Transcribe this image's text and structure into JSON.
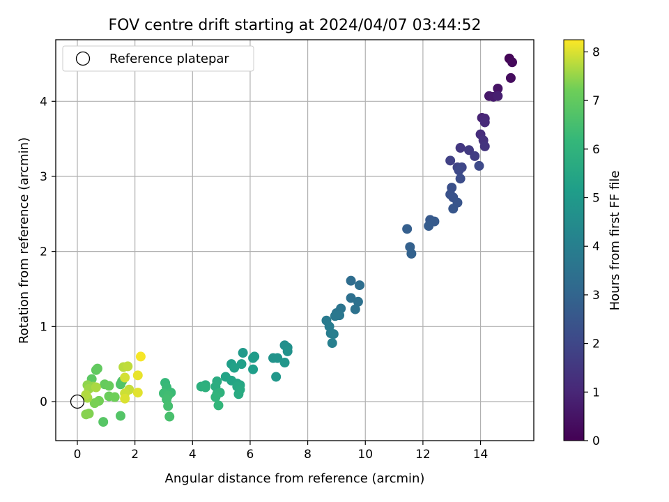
{
  "chart_data": {
    "type": "scatter",
    "title": "FOV centre drift starting at 2024/04/07 03:44:52",
    "xlabel": "Angular distance from reference (arcmin)",
    "ylabel": "Rotation from reference (arcmin)",
    "xlim": [
      -0.75,
      15.85
    ],
    "ylim": [
      -0.52,
      4.82
    ],
    "x_ticks": [
      0,
      2,
      4,
      6,
      8,
      10,
      12,
      14
    ],
    "y_ticks": [
      0,
      1,
      2,
      3,
      4
    ],
    "grid": true,
    "legend": {
      "position": "top-left",
      "entries": [
        "Reference platepar"
      ]
    },
    "reference_point": {
      "x": 0,
      "y": 0
    },
    "colorbar": {
      "label": "Hours from first FF file",
      "colormap": "viridis",
      "range": [
        0,
        8.25
      ],
      "ticks": [
        0,
        1,
        2,
        3,
        4,
        5,
        6,
        7,
        8
      ]
    },
    "points": [
      {
        "x": 15.0,
        "y": 4.57,
        "c": 0.1
      },
      {
        "x": 15.1,
        "y": 4.52,
        "c": 0.2
      },
      {
        "x": 15.05,
        "y": 4.31,
        "c": 0.3
      },
      {
        "x": 14.6,
        "y": 4.17,
        "c": 0.5
      },
      {
        "x": 14.3,
        "y": 4.07,
        "c": 0.6
      },
      {
        "x": 14.45,
        "y": 4.06,
        "c": 0.7
      },
      {
        "x": 14.6,
        "y": 4.07,
        "c": 0.8
      },
      {
        "x": 14.05,
        "y": 3.78,
        "c": 0.9
      },
      {
        "x": 14.15,
        "y": 3.77,
        "c": 1.0
      },
      {
        "x": 14.15,
        "y": 3.72,
        "c": 1.1
      },
      {
        "x": 14.0,
        "y": 3.56,
        "c": 1.2
      },
      {
        "x": 14.1,
        "y": 3.48,
        "c": 1.3
      },
      {
        "x": 14.15,
        "y": 3.4,
        "c": 1.4
      },
      {
        "x": 13.3,
        "y": 3.38,
        "c": 1.5
      },
      {
        "x": 13.6,
        "y": 3.35,
        "c": 1.6
      },
      {
        "x": 13.8,
        "y": 3.27,
        "c": 1.7
      },
      {
        "x": 12.95,
        "y": 3.21,
        "c": 1.8
      },
      {
        "x": 13.2,
        "y": 3.12,
        "c": 1.9
      },
      {
        "x": 13.35,
        "y": 3.12,
        "c": 2.0
      },
      {
        "x": 13.25,
        "y": 3.08,
        "c": 2.05
      },
      {
        "x": 13.95,
        "y": 3.14,
        "c": 2.1
      },
      {
        "x": 13.3,
        "y": 2.97,
        "c": 2.2
      },
      {
        "x": 13.0,
        "y": 2.85,
        "c": 2.3
      },
      {
        "x": 12.95,
        "y": 2.76,
        "c": 2.35
      },
      {
        "x": 13.05,
        "y": 2.72,
        "c": 2.4
      },
      {
        "x": 13.2,
        "y": 2.65,
        "c": 2.45
      },
      {
        "x": 13.05,
        "y": 2.57,
        "c": 2.5
      },
      {
        "x": 12.25,
        "y": 2.42,
        "c": 2.6
      },
      {
        "x": 12.4,
        "y": 2.4,
        "c": 2.65
      },
      {
        "x": 12.2,
        "y": 2.34,
        "c": 2.7
      },
      {
        "x": 11.45,
        "y": 2.3,
        "c": 2.8
      },
      {
        "x": 11.55,
        "y": 2.06,
        "c": 2.85
      },
      {
        "x": 11.6,
        "y": 1.97,
        "c": 2.9
      },
      {
        "x": 9.5,
        "y": 1.61,
        "c": 3.3
      },
      {
        "x": 9.8,
        "y": 1.55,
        "c": 3.35
      },
      {
        "x": 9.5,
        "y": 1.38,
        "c": 3.4
      },
      {
        "x": 9.75,
        "y": 1.33,
        "c": 3.45
      },
      {
        "x": 9.65,
        "y": 1.23,
        "c": 3.5
      },
      {
        "x": 9.15,
        "y": 1.24,
        "c": 3.55
      },
      {
        "x": 9.0,
        "y": 1.18,
        "c": 3.6
      },
      {
        "x": 9.05,
        "y": 1.16,
        "c": 3.65
      },
      {
        "x": 9.1,
        "y": 1.15,
        "c": 3.7
      },
      {
        "x": 8.95,
        "y": 1.14,
        "c": 3.72
      },
      {
        "x": 8.65,
        "y": 1.08,
        "c": 3.8
      },
      {
        "x": 8.75,
        "y": 1.0,
        "c": 3.85
      },
      {
        "x": 8.8,
        "y": 0.91,
        "c": 3.9
      },
      {
        "x": 8.9,
        "y": 0.9,
        "c": 3.95
      },
      {
        "x": 8.85,
        "y": 0.78,
        "c": 4.0
      },
      {
        "x": 7.2,
        "y": 0.75,
        "c": 4.6
      },
      {
        "x": 7.3,
        "y": 0.72,
        "c": 4.65
      },
      {
        "x": 7.3,
        "y": 0.67,
        "c": 4.7
      },
      {
        "x": 6.8,
        "y": 0.58,
        "c": 4.75
      },
      {
        "x": 6.95,
        "y": 0.58,
        "c": 4.8
      },
      {
        "x": 7.2,
        "y": 0.52,
        "c": 4.85
      },
      {
        "x": 6.9,
        "y": 0.33,
        "c": 4.9
      },
      {
        "x": 5.75,
        "y": 0.65,
        "c": 5.0
      },
      {
        "x": 6.15,
        "y": 0.6,
        "c": 5.05
      },
      {
        "x": 6.1,
        "y": 0.58,
        "c": 5.1
      },
      {
        "x": 6.1,
        "y": 0.43,
        "c": 5.15
      },
      {
        "x": 5.35,
        "y": 0.5,
        "c": 5.2
      },
      {
        "x": 5.7,
        "y": 0.5,
        "c": 5.25
      },
      {
        "x": 5.45,
        "y": 0.45,
        "c": 5.3
      },
      {
        "x": 5.15,
        "y": 0.33,
        "c": 5.35
      },
      {
        "x": 5.35,
        "y": 0.28,
        "c": 5.4
      },
      {
        "x": 5.55,
        "y": 0.24,
        "c": 5.45
      },
      {
        "x": 5.65,
        "y": 0.22,
        "c": 5.5
      },
      {
        "x": 5.55,
        "y": 0.2,
        "c": 5.55
      },
      {
        "x": 5.65,
        "y": 0.16,
        "c": 5.6
      },
      {
        "x": 5.6,
        "y": 0.1,
        "c": 5.65
      },
      {
        "x": 4.85,
        "y": 0.27,
        "c": 5.7
      },
      {
        "x": 4.8,
        "y": 0.2,
        "c": 5.75
      },
      {
        "x": 4.45,
        "y": 0.22,
        "c": 5.8
      },
      {
        "x": 4.3,
        "y": 0.2,
        "c": 5.85
      },
      {
        "x": 4.45,
        "y": 0.19,
        "c": 5.9
      },
      {
        "x": 4.95,
        "y": 0.12,
        "c": 5.95
      },
      {
        "x": 4.85,
        "y": 0.1,
        "c": 6.0
      },
      {
        "x": 4.8,
        "y": 0.06,
        "c": 6.05
      },
      {
        "x": 4.9,
        "y": -0.05,
        "c": 6.1
      },
      {
        "x": 3.05,
        "y": 0.25,
        "c": 6.2
      },
      {
        "x": 3.1,
        "y": 0.19,
        "c": 6.25
      },
      {
        "x": 3.25,
        "y": 0.12,
        "c": 6.3
      },
      {
        "x": 3.0,
        "y": 0.11,
        "c": 6.35
      },
      {
        "x": 3.15,
        "y": 0.08,
        "c": 6.4
      },
      {
        "x": 3.1,
        "y": 0.03,
        "c": 6.45
      },
      {
        "x": 3.15,
        "y": -0.06,
        "c": 6.5
      },
      {
        "x": 3.2,
        "y": -0.2,
        "c": 6.55
      },
      {
        "x": 1.55,
        "y": 0.27,
        "c": 6.7
      },
      {
        "x": 1.5,
        "y": 0.23,
        "c": 6.72
      },
      {
        "x": 1.5,
        "y": -0.19,
        "c": 6.75
      },
      {
        "x": 0.9,
        "y": -0.27,
        "c": 6.8
      },
      {
        "x": 0.5,
        "y": 0.3,
        "c": 6.9
      },
      {
        "x": 0.65,
        "y": 0.42,
        "c": 6.95
      },
      {
        "x": 0.7,
        "y": 0.44,
        "c": 7.0
      },
      {
        "x": 0.95,
        "y": 0.23,
        "c": 7.05
      },
      {
        "x": 1.1,
        "y": 0.21,
        "c": 7.1
      },
      {
        "x": 1.1,
        "y": 0.07,
        "c": 7.15
      },
      {
        "x": 1.3,
        "y": 0.06,
        "c": 7.2
      },
      {
        "x": 0.75,
        "y": 0.01,
        "c": 7.25
      },
      {
        "x": 0.6,
        "y": -0.02,
        "c": 7.3
      },
      {
        "x": 0.4,
        "y": -0.16,
        "c": 7.35
      },
      {
        "x": 0.3,
        "y": -0.17,
        "c": 7.4
      },
      {
        "x": 0.35,
        "y": 0.22,
        "c": 7.45
      },
      {
        "x": 0.55,
        "y": 0.2,
        "c": 7.5
      },
      {
        "x": 0.4,
        "y": 0.17,
        "c": 7.55
      },
      {
        "x": 0.35,
        "y": 0.05,
        "c": 7.6
      },
      {
        "x": 0.65,
        "y": 0.19,
        "c": 7.65
      },
      {
        "x": 0.3,
        "y": 0.09,
        "c": 7.7
      },
      {
        "x": 1.6,
        "y": 0.46,
        "c": 7.75
      },
      {
        "x": 1.75,
        "y": 0.47,
        "c": 7.8
      },
      {
        "x": 1.8,
        "y": 0.16,
        "c": 7.85
      },
      {
        "x": 1.65,
        "y": 0.11,
        "c": 7.9
      },
      {
        "x": 1.65,
        "y": 0.32,
        "c": 7.95
      },
      {
        "x": 1.65,
        "y": 0.04,
        "c": 8.0
      },
      {
        "x": 2.1,
        "y": 0.12,
        "c": 8.05
      },
      {
        "x": 2.1,
        "y": 0.35,
        "c": 8.1
      },
      {
        "x": 2.2,
        "y": 0.6,
        "c": 8.2
      }
    ]
  }
}
